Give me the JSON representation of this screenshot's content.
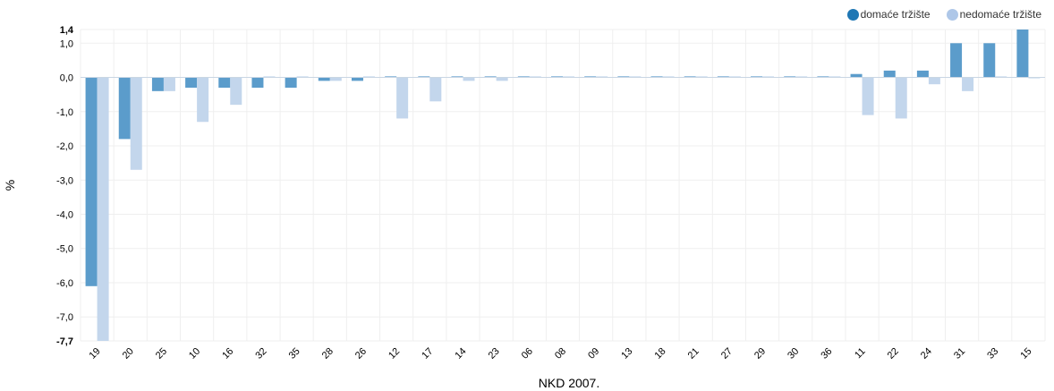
{
  "chart_data": {
    "type": "bar",
    "xlabel": "NKD 2007.",
    "ylabel": "%",
    "ylim": [
      -7.7,
      1.4
    ],
    "y_ticks": [
      {
        "value": 1.4,
        "label": "1,4",
        "bold": true
      },
      {
        "value": 1.0,
        "label": "1,0"
      },
      {
        "value": 0.0,
        "label": "0,0"
      },
      {
        "value": -1.0,
        "label": "-1,0"
      },
      {
        "value": -2.0,
        "label": "-2,0"
      },
      {
        "value": -3.0,
        "label": "-3,0"
      },
      {
        "value": -4.0,
        "label": "-4,0"
      },
      {
        "value": -5.0,
        "label": "-5,0"
      },
      {
        "value": -6.0,
        "label": "-6,0"
      },
      {
        "value": -7.0,
        "label": "-7,0"
      },
      {
        "value": -7.7,
        "label": "-7,7",
        "bold": true
      }
    ],
    "grid": true,
    "legend_position": "top-right",
    "categories": [
      "19",
      "20",
      "25",
      "10",
      "16",
      "32",
      "35",
      "28",
      "26",
      "12",
      "17",
      "14",
      "23",
      "06",
      "08",
      "09",
      "13",
      "18",
      "21",
      "27",
      "29",
      "30",
      "36",
      "11",
      "22",
      "24",
      "31",
      "33",
      "15"
    ],
    "series": [
      {
        "name": "domaće tržište",
        "color": "#5b9ccb",
        "values": [
          -6.1,
          -1.8,
          -0.4,
          -0.3,
          -0.3,
          -0.3,
          -0.3,
          -0.1,
          -0.1,
          0.03,
          0.03,
          0.03,
          0.03,
          0.03,
          0.03,
          0.03,
          0.03,
          0.03,
          0.03,
          0.03,
          0.03,
          0.03,
          0.03,
          0.1,
          0.2,
          0.2,
          1.0,
          1.0,
          1.4
        ]
      },
      {
        "name": "nedomaće tržište",
        "color": "#c3d6ec",
        "values": [
          -7.7,
          -2.7,
          -0.4,
          -1.3,
          -0.8,
          0.03,
          0.03,
          -0.1,
          0.03,
          -1.2,
          -0.7,
          -0.1,
          -0.1,
          0.03,
          0.03,
          0.03,
          0.03,
          0.03,
          0.03,
          0.03,
          0.03,
          0.03,
          0.03,
          -1.1,
          -1.2,
          -0.2,
          -0.4,
          0.03,
          0.0
        ]
      }
    ]
  },
  "legend": {
    "items": [
      {
        "label": "domaće tržište",
        "color": "#1f77b4"
      },
      {
        "label": "nedomaće tržište",
        "color": "#aec7e8"
      }
    ]
  }
}
